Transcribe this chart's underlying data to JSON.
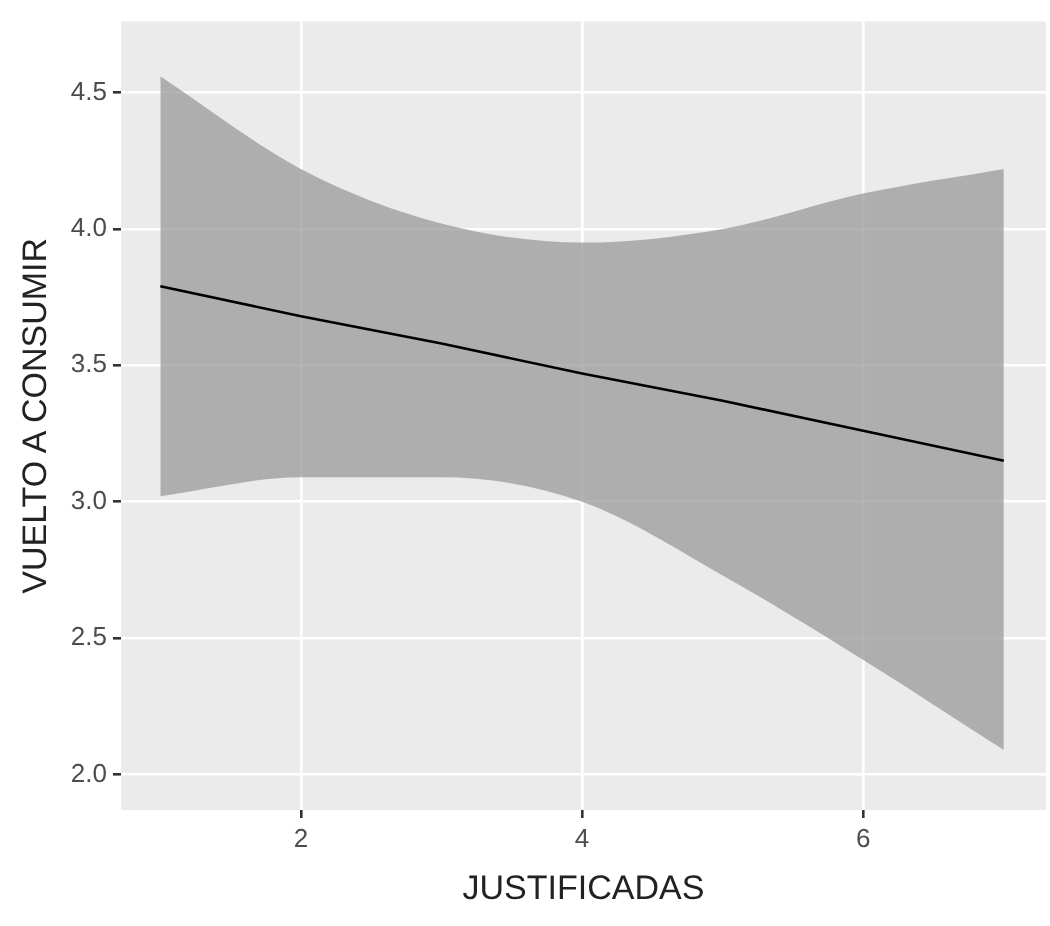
{
  "chart_data": {
    "type": "line",
    "xlabel": "JUSTIFICADAS",
    "ylabel": "VUELTO A CONSUMIR",
    "x": [
      1,
      2,
      3,
      4,
      5,
      6,
      7
    ],
    "series": [
      {
        "color": "#000000",
        "values": [
          3.79,
          3.68,
          3.58,
          3.47,
          3.37,
          3.26,
          3.15
        ],
        "lower": [
          3.02,
          3.09,
          3.09,
          3.0,
          2.73,
          2.42,
          2.09
        ],
        "upper": [
          4.56,
          4.22,
          4.02,
          3.95,
          4.0,
          4.13,
          4.22
        ]
      }
    ],
    "xlim": [
      0.72,
      7.3
    ],
    "ylim": [
      1.87,
      4.76
    ],
    "xticks": [
      2,
      4,
      6
    ],
    "yticks": [
      {
        "value": 2,
        "label": "2.0"
      },
      {
        "value": 2.5,
        "label": "2.5"
      },
      {
        "value": 3,
        "label": "3.0"
      },
      {
        "value": 3.5,
        "label": "3.5"
      },
      {
        "value": 4,
        "label": "4.0"
      },
      {
        "value": 4.5,
        "label": "4.5"
      }
    ],
    "grid": true,
    "legend": false,
    "marker": "none",
    "line_style": "solid"
  }
}
